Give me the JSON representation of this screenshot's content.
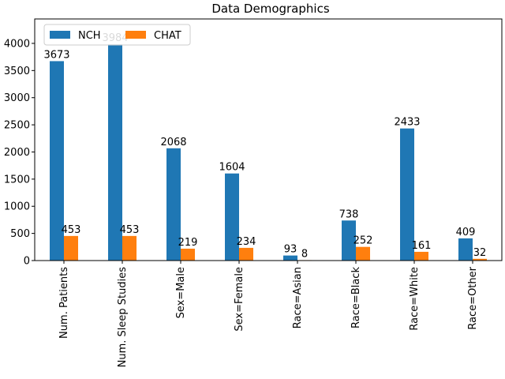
{
  "chart_data": {
    "type": "bar",
    "title": "Data Demographics",
    "xlabel": "",
    "ylabel": "",
    "categories": [
      "Num. Patients",
      "Num. Sleep Studies",
      "Sex=Male",
      "Sex=Female",
      "Race=Asian",
      "Race=Black",
      "Race=White",
      "Race=Other"
    ],
    "series": [
      {
        "name": "NCH",
        "values": [
          3673,
          3984,
          2068,
          1604,
          93,
          738,
          2433,
          409
        ],
        "color": "#1f77b4"
      },
      {
        "name": "CHAT",
        "values": [
          453,
          453,
          219,
          234,
          8,
          252,
          161,
          32
        ],
        "color": "#ff7f0e"
      }
    ],
    "ylim": [
      0,
      4450
    ],
    "yticks": [
      0,
      500,
      1000,
      1500,
      2000,
      2500,
      3000,
      3500,
      4000
    ],
    "legend_position": "top-left",
    "grid": false
  }
}
